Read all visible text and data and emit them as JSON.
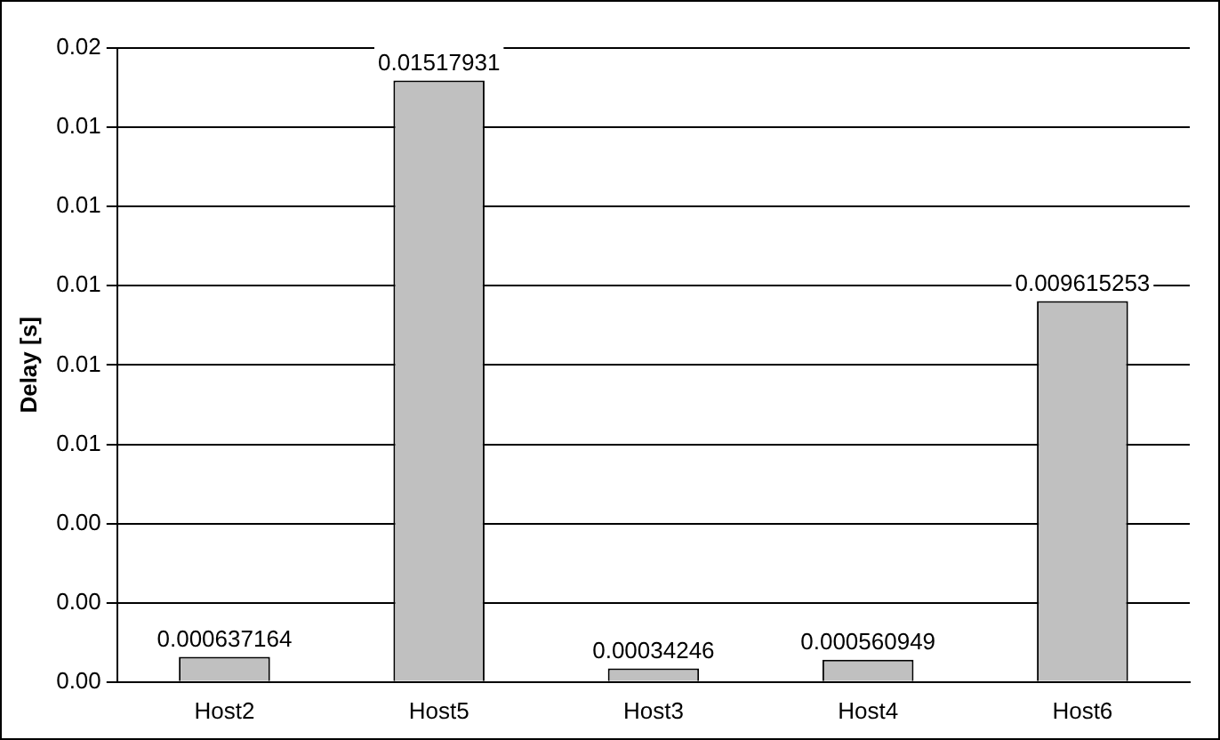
{
  "chart_data": {
    "type": "bar",
    "ylabel": "Delay [s]",
    "categories": [
      "Host2",
      "Host5",
      "Host3",
      "Host4",
      "Host6"
    ],
    "values": [
      0.000637164,
      0.01517931,
      0.00034246,
      0.000560949,
      0.009615253
    ],
    "color": "#c0c0c0",
    "ylim": [
      0,
      0.016
    ],
    "yticks": [
      {
        "value": 0,
        "label": "0.00"
      },
      {
        "value": 0.002,
        "label": "0.00"
      },
      {
        "value": 0.004,
        "label": "0.00"
      },
      {
        "value": 0.006,
        "label": "0.01"
      },
      {
        "value": 0.008,
        "label": "0.01"
      },
      {
        "value": 0.01,
        "label": "0.01"
      },
      {
        "value": 0.012,
        "label": "0.01"
      },
      {
        "value": 0.014,
        "label": "0.01"
      },
      {
        "value": 0.016,
        "label": "0.02"
      }
    ],
    "grid": "y",
    "data_labels": true,
    "legend": false
  }
}
